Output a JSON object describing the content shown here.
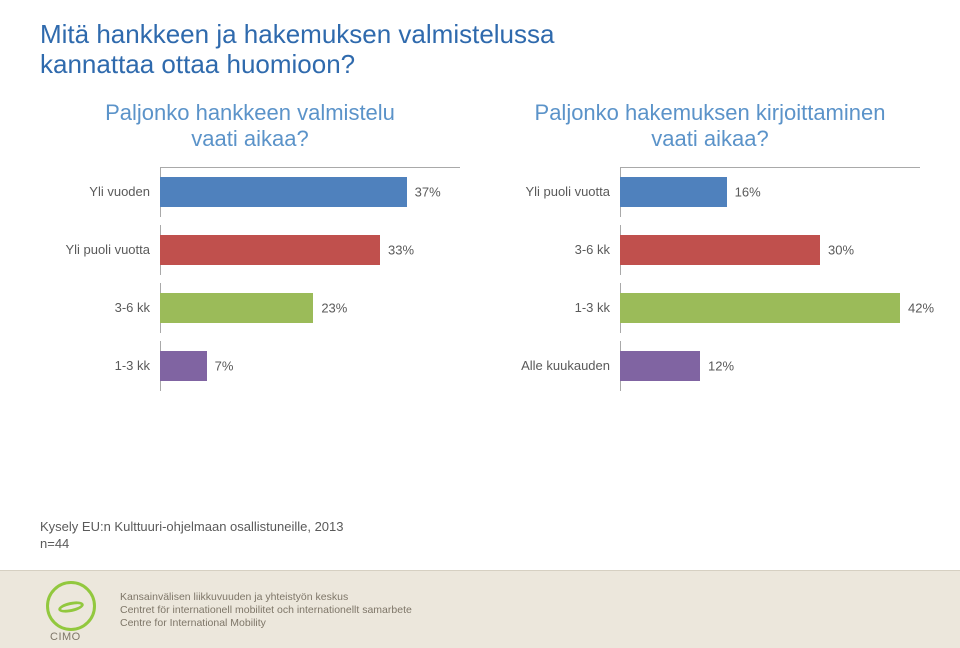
{
  "title_line1": "Mitä hankkeen ja hakemuksen valmistelussa",
  "title_line2": "kannattaa ottaa huomioon?",
  "subtitle_left_l1": "Paljonko hankkeen valmistelu",
  "subtitle_left_l2": "vaati aikaa?",
  "subtitle_right_l1": "Paljonko hakemuksen kirjoittaminen",
  "subtitle_right_l2": "vaati aikaa?",
  "chart_left": {
    "type": "bar",
    "max_pct": 45,
    "rows": [
      {
        "label": "Yli vuoden",
        "value": 37,
        "color": "#4f81bd"
      },
      {
        "label": "Yli puoli vuotta",
        "value": 33,
        "color": "#c0504d"
      },
      {
        "label": "3-6 kk",
        "value": 23,
        "color": "#9bbb59"
      },
      {
        "label": "1-3 kk",
        "value": 7,
        "color": "#8064a2"
      }
    ]
  },
  "chart_right": {
    "type": "bar",
    "max_pct": 45,
    "rows": [
      {
        "label": "Yli puoli vuotta",
        "value": 16,
        "color": "#4f81bd"
      },
      {
        "label": "3-6 kk",
        "value": 30,
        "color": "#c0504d"
      },
      {
        "label": "1-3 kk",
        "value": 42,
        "color": "#9bbb59"
      },
      {
        "label": "Alle kuukauden",
        "value": 12,
        "color": "#8064a2"
      }
    ]
  },
  "source_l1": "Kysely EU:n Kulttuuri-ohjelmaan osallistuneille, 2013",
  "source_l2": "n=44",
  "logo_text": "CIMO",
  "footer_l1": "Kansainvälisen liikkuvuuden ja yhteistyön keskus",
  "footer_l2": "Centret för internationell mobilitet och internationellt samarbete",
  "footer_l3": "Centre for International Mobility",
  "colors": {
    "title": "#2f6aad",
    "subtitle": "#5b93c9",
    "text": "#5a5a5a",
    "axis": "#a9a9a9",
    "footer_bg": "#ece7dc",
    "footer_text": "#7e7668",
    "logo_green": "#92c83e",
    "background": "#ffffff"
  },
  "typography": {
    "title_fontsize": 26,
    "subtitle_fontsize": 22,
    "label_fontsize": 13,
    "footer_fontsize": 10.5
  }
}
